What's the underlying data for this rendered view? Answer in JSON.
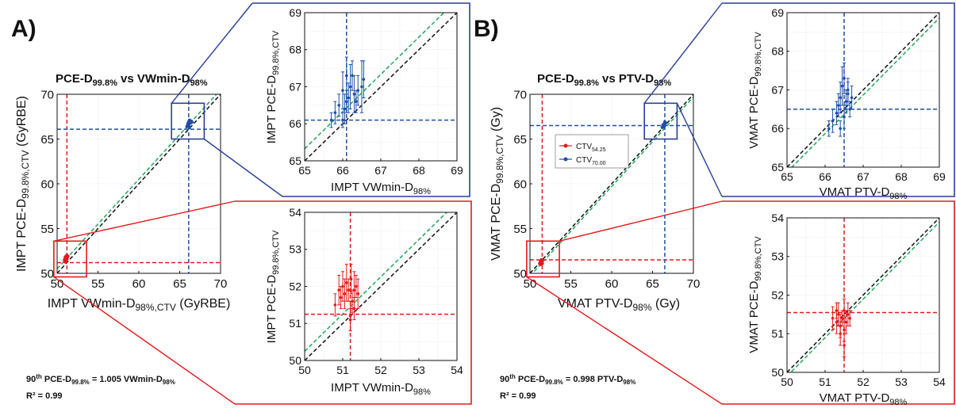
{
  "colors": {
    "red": "#e31a1c",
    "blue": "#1f4fa8",
    "box_blue": "#2a3f9a",
    "box_red": "#e31a1c",
    "black_line": "#111111",
    "green_line": "#21a65b",
    "grid": "#d9d9d9"
  },
  "panels": [
    {
      "letter": "A)",
      "title": {
        "main": "PCE-D",
        "sub": "99.8%",
        "mid": " vs VWmin-D",
        "sub2": "98%"
      },
      "equation": {
        "pct": "90",
        "sup": "th",
        "left": " PCE-D",
        "leftsub": "99.8%",
        "right": " = 1.005 VWmin-D",
        "rightsub": "98%"
      },
      "r2": "R² = 0.99",
      "main_xlabel": {
        "a": "IMPT VWmin-D",
        "sub": "98%,CTV",
        "b": " (GyRBE)"
      },
      "main_ylabel": {
        "a": "IMPT PCE-D",
        "sub": "99.8%,CTV",
        "b": " (GyRBE)"
      },
      "zoom_xlabel": {
        "a": "IMPT VWmin-D",
        "sub": "98%"
      },
      "zoom_ylabel": {
        "a": "IMPT PCE-D",
        "sub": "99.8%,CTV"
      }
    },
    {
      "letter": "B)",
      "title": {
        "main": "PCE-D",
        "sub": "99.8%",
        "mid": " vs PTV-D",
        "sub2": "98%"
      },
      "equation": {
        "pct": "90",
        "sup": "th",
        "left": " PCE-D",
        "leftsub": "99.8%",
        "right": " = 0.998 PTV-D",
        "rightsub": "98%"
      },
      "r2": "R² = 0.99",
      "main_xlabel": {
        "a": "VMAT PTV-D",
        "sub": "98%",
        "b": " (Gy)"
      },
      "main_ylabel": {
        "a": "VMAT PCE-D",
        "sub": "99.8%,CTV",
        "b": " (Gy)"
      },
      "zoom_xlabel": {
        "a": "VMAT PTV-D",
        "sub": "98%"
      },
      "zoom_ylabel": {
        "a": "VMAT PCE-D",
        "sub": "99.8%,CTV"
      },
      "legend": [
        {
          "label": "CTV",
          "sub": "54.25",
          "color": "red"
        },
        {
          "label": "CTV",
          "sub": "70.00",
          "color": "blue"
        }
      ]
    }
  ],
  "chart_data": [
    {
      "id": "A-main",
      "type": "scatter",
      "xlim": [
        50,
        70
      ],
      "ylim": [
        50,
        70
      ],
      "xticks": [
        50,
        55,
        60,
        65,
        70
      ],
      "yticks": [
        50,
        55,
        60,
        65,
        70
      ],
      "grid": true,
      "ref_lines": {
        "identity_slope": 1.0,
        "fit_slope": 1.005
      },
      "thresholds": {
        "red": {
          "x": 51.2,
          "y": 51.2
        },
        "blue": {
          "x": 66.1,
          "y": 66.1
        }
      },
      "series": [
        {
          "name": "CTV54.25",
          "color": "red",
          "points": [
            [
              50.9,
              51.5
            ],
            [
              51.0,
              51.8
            ],
            [
              51.1,
              51.9
            ],
            [
              51.0,
              51.6
            ],
            [
              51.2,
              52.0
            ],
            [
              51.1,
              51.4
            ],
            [
              51.2,
              51.7
            ],
            [
              51.3,
              51.9
            ],
            [
              51.0,
              51.3
            ],
            [
              51.2,
              51.6
            ]
          ]
        },
        {
          "name": "CTV70.00",
          "color": "blue",
          "points": [
            [
              65.9,
              66.4
            ],
            [
              66.0,
              66.7
            ],
            [
              66.1,
              66.9
            ],
            [
              66.2,
              67.1
            ],
            [
              66.3,
              66.8
            ],
            [
              66.1,
              66.5
            ],
            [
              66.4,
              67.0
            ],
            [
              66.0,
              66.6
            ],
            [
              66.2,
              66.3
            ],
            [
              66.5,
              66.9
            ]
          ]
        }
      ]
    },
    {
      "id": "A-zoom-blue",
      "type": "scatter",
      "xlim": [
        65,
        69
      ],
      "ylim": [
        65,
        69
      ],
      "xticks": [
        65,
        66,
        67,
        68,
        69
      ],
      "yticks": [
        65,
        66,
        67,
        68,
        69
      ],
      "grid": true,
      "ref_lines": {
        "identity_slope": 1.0,
        "fit_slope": 1.005
      },
      "thresholds": {
        "blue": {
          "x": 66.1,
          "y": 66.1
        }
      },
      "series": [
        {
          "name": "CTV70.00",
          "color": "blue",
          "points": [
            [
              65.7,
              66.1,
              0.2
            ],
            [
              65.8,
              66.3,
              0.3
            ],
            [
              65.9,
              66.5,
              0.3
            ],
            [
              66.0,
              66.9,
              0.5
            ],
            [
              66.05,
              66.4,
              0.4
            ],
            [
              66.1,
              67.3,
              0.5
            ],
            [
              66.15,
              66.7,
              0.4
            ],
            [
              66.2,
              67.0,
              0.6
            ],
            [
              66.25,
              67.3,
              0.4
            ],
            [
              66.3,
              66.8,
              0.5
            ],
            [
              66.35,
              66.6,
              0.3
            ],
            [
              66.4,
              66.9,
              0.4
            ],
            [
              66.5,
              67.0,
              0.7
            ],
            [
              66.55,
              67.2,
              0.5
            ],
            [
              66.0,
              66.1,
              0.2
            ],
            [
              66.1,
              66.6,
              0.3
            ]
          ]
        }
      ]
    },
    {
      "id": "A-zoom-red",
      "type": "scatter",
      "xlim": [
        50,
        54
      ],
      "ylim": [
        50,
        54
      ],
      "xticks": [
        50,
        51,
        52,
        53,
        54
      ],
      "yticks": [
        50,
        51,
        52,
        53,
        54
      ],
      "grid": true,
      "ref_lines": {
        "identity_slope": 1.0,
        "fit_slope": 1.005
      },
      "thresholds": {
        "red": {
          "x": 51.2,
          "y": 51.25
        }
      },
      "series": [
        {
          "name": "CTV54.25",
          "color": "red",
          "points": [
            [
              50.8,
              51.5,
              0.3
            ],
            [
              50.9,
              51.9,
              0.4
            ],
            [
              50.95,
              51.7,
              0.3
            ],
            [
              51.0,
              52.0,
              0.4
            ],
            [
              51.05,
              51.8,
              0.4
            ],
            [
              51.1,
              52.1,
              0.5
            ],
            [
              51.15,
              51.9,
              0.3
            ],
            [
              51.2,
              51.2,
              0.4
            ],
            [
              51.22,
              52.2,
              0.4
            ],
            [
              51.25,
              51.6,
              0.3
            ],
            [
              51.3,
              51.9,
              0.5
            ],
            [
              51.35,
              52.0,
              0.3
            ],
            [
              51.4,
              51.8,
              0.4
            ],
            [
              51.2,
              51.1,
              0.3
            ],
            [
              51.3,
              51.4,
              0.3
            ]
          ]
        }
      ]
    },
    {
      "id": "B-main",
      "type": "scatter",
      "xlim": [
        50,
        70
      ],
      "ylim": [
        50,
        70
      ],
      "xticks": [
        50,
        55,
        60,
        65,
        70
      ],
      "yticks": [
        50,
        55,
        60,
        65,
        70
      ],
      "grid": true,
      "ref_lines": {
        "identity_slope": 1.0,
        "fit_slope": 0.998
      },
      "thresholds": {
        "red": {
          "x": 51.5,
          "y": 51.5
        },
        "blue": {
          "x": 66.5,
          "y": 66.5
        }
      },
      "series": [
        {
          "name": "CTV54.25",
          "color": "red",
          "points": [
            [
              51.2,
              51.1
            ],
            [
              51.3,
              51.4
            ],
            [
              51.4,
              51.5
            ],
            [
              51.3,
              51.2
            ],
            [
              51.5,
              51.4
            ],
            [
              51.4,
              51.3
            ],
            [
              51.5,
              51.1
            ],
            [
              51.3,
              51.0
            ]
          ]
        },
        {
          "name": "CTV70.00",
          "color": "blue",
          "points": [
            [
              66.2,
              66.3
            ],
            [
              66.3,
              66.5
            ],
            [
              66.4,
              66.6
            ],
            [
              66.5,
              66.7
            ],
            [
              66.6,
              66.8
            ],
            [
              66.4,
              66.4
            ],
            [
              66.5,
              66.9
            ],
            [
              66.3,
              66.6
            ]
          ]
        }
      ]
    },
    {
      "id": "B-zoom-blue",
      "type": "scatter",
      "xlim": [
        65,
        69
      ],
      "ylim": [
        65,
        69
      ],
      "xticks": [
        65,
        66,
        67,
        68,
        69
      ],
      "yticks": [
        65,
        66,
        67,
        68,
        69
      ],
      "grid": true,
      "ref_lines": {
        "identity_slope": 1.0,
        "fit_slope": 0.998
      },
      "thresholds": {
        "blue": {
          "x": 66.5,
          "y": 66.5
        }
      },
      "series": [
        {
          "name": "CTV70.00",
          "color": "blue",
          "points": [
            [
              66.1,
              66.0,
              0.2
            ],
            [
              66.2,
              66.2,
              0.3
            ],
            [
              66.3,
              66.4,
              0.3
            ],
            [
              66.35,
              66.6,
              0.3
            ],
            [
              66.4,
              66.8,
              0.4
            ],
            [
              66.45,
              67.1,
              0.5
            ],
            [
              66.5,
              66.3,
              0.3
            ],
            [
              66.5,
              67.3,
              0.4
            ],
            [
              66.55,
              66.7,
              0.3
            ],
            [
              66.6,
              66.9,
              0.3
            ],
            [
              66.65,
              66.5,
              0.2
            ],
            [
              66.7,
              66.8,
              0.3
            ],
            [
              66.4,
              66.0,
              0.2
            ],
            [
              66.6,
              67.0,
              0.3
            ]
          ]
        }
      ]
    },
    {
      "id": "B-zoom-red",
      "type": "scatter",
      "xlim": [
        50,
        54
      ],
      "ylim": [
        50,
        54
      ],
      "xticks": [
        50,
        51,
        52,
        53,
        54
      ],
      "yticks": [
        50,
        51,
        52,
        53,
        54
      ],
      "grid": true,
      "ref_lines": {
        "identity_slope": 1.0,
        "fit_slope": 0.998
      },
      "thresholds": {
        "red": {
          "x": 51.5,
          "y": 51.55
        }
      },
      "series": [
        {
          "name": "CTV54.25",
          "color": "red",
          "points": [
            [
              51.2,
              51.4,
              0.3
            ],
            [
              51.3,
              51.3,
              0.3
            ],
            [
              51.35,
              51.5,
              0.3
            ],
            [
              51.4,
              51.2,
              0.3
            ],
            [
              51.45,
              51.4,
              0.2
            ],
            [
              51.5,
              51.1,
              0.3
            ],
            [
              51.5,
              51.6,
              0.3
            ],
            [
              51.55,
              51.3,
              0.3
            ],
            [
              51.6,
              51.5,
              0.3
            ],
            [
              51.65,
              51.4,
              0.2
            ],
            [
              51.4,
              51.0,
              0.3
            ],
            [
              51.5,
              50.7,
              0.3
            ],
            [
              51.3,
              51.6,
              0.2
            ]
          ]
        }
      ]
    }
  ]
}
